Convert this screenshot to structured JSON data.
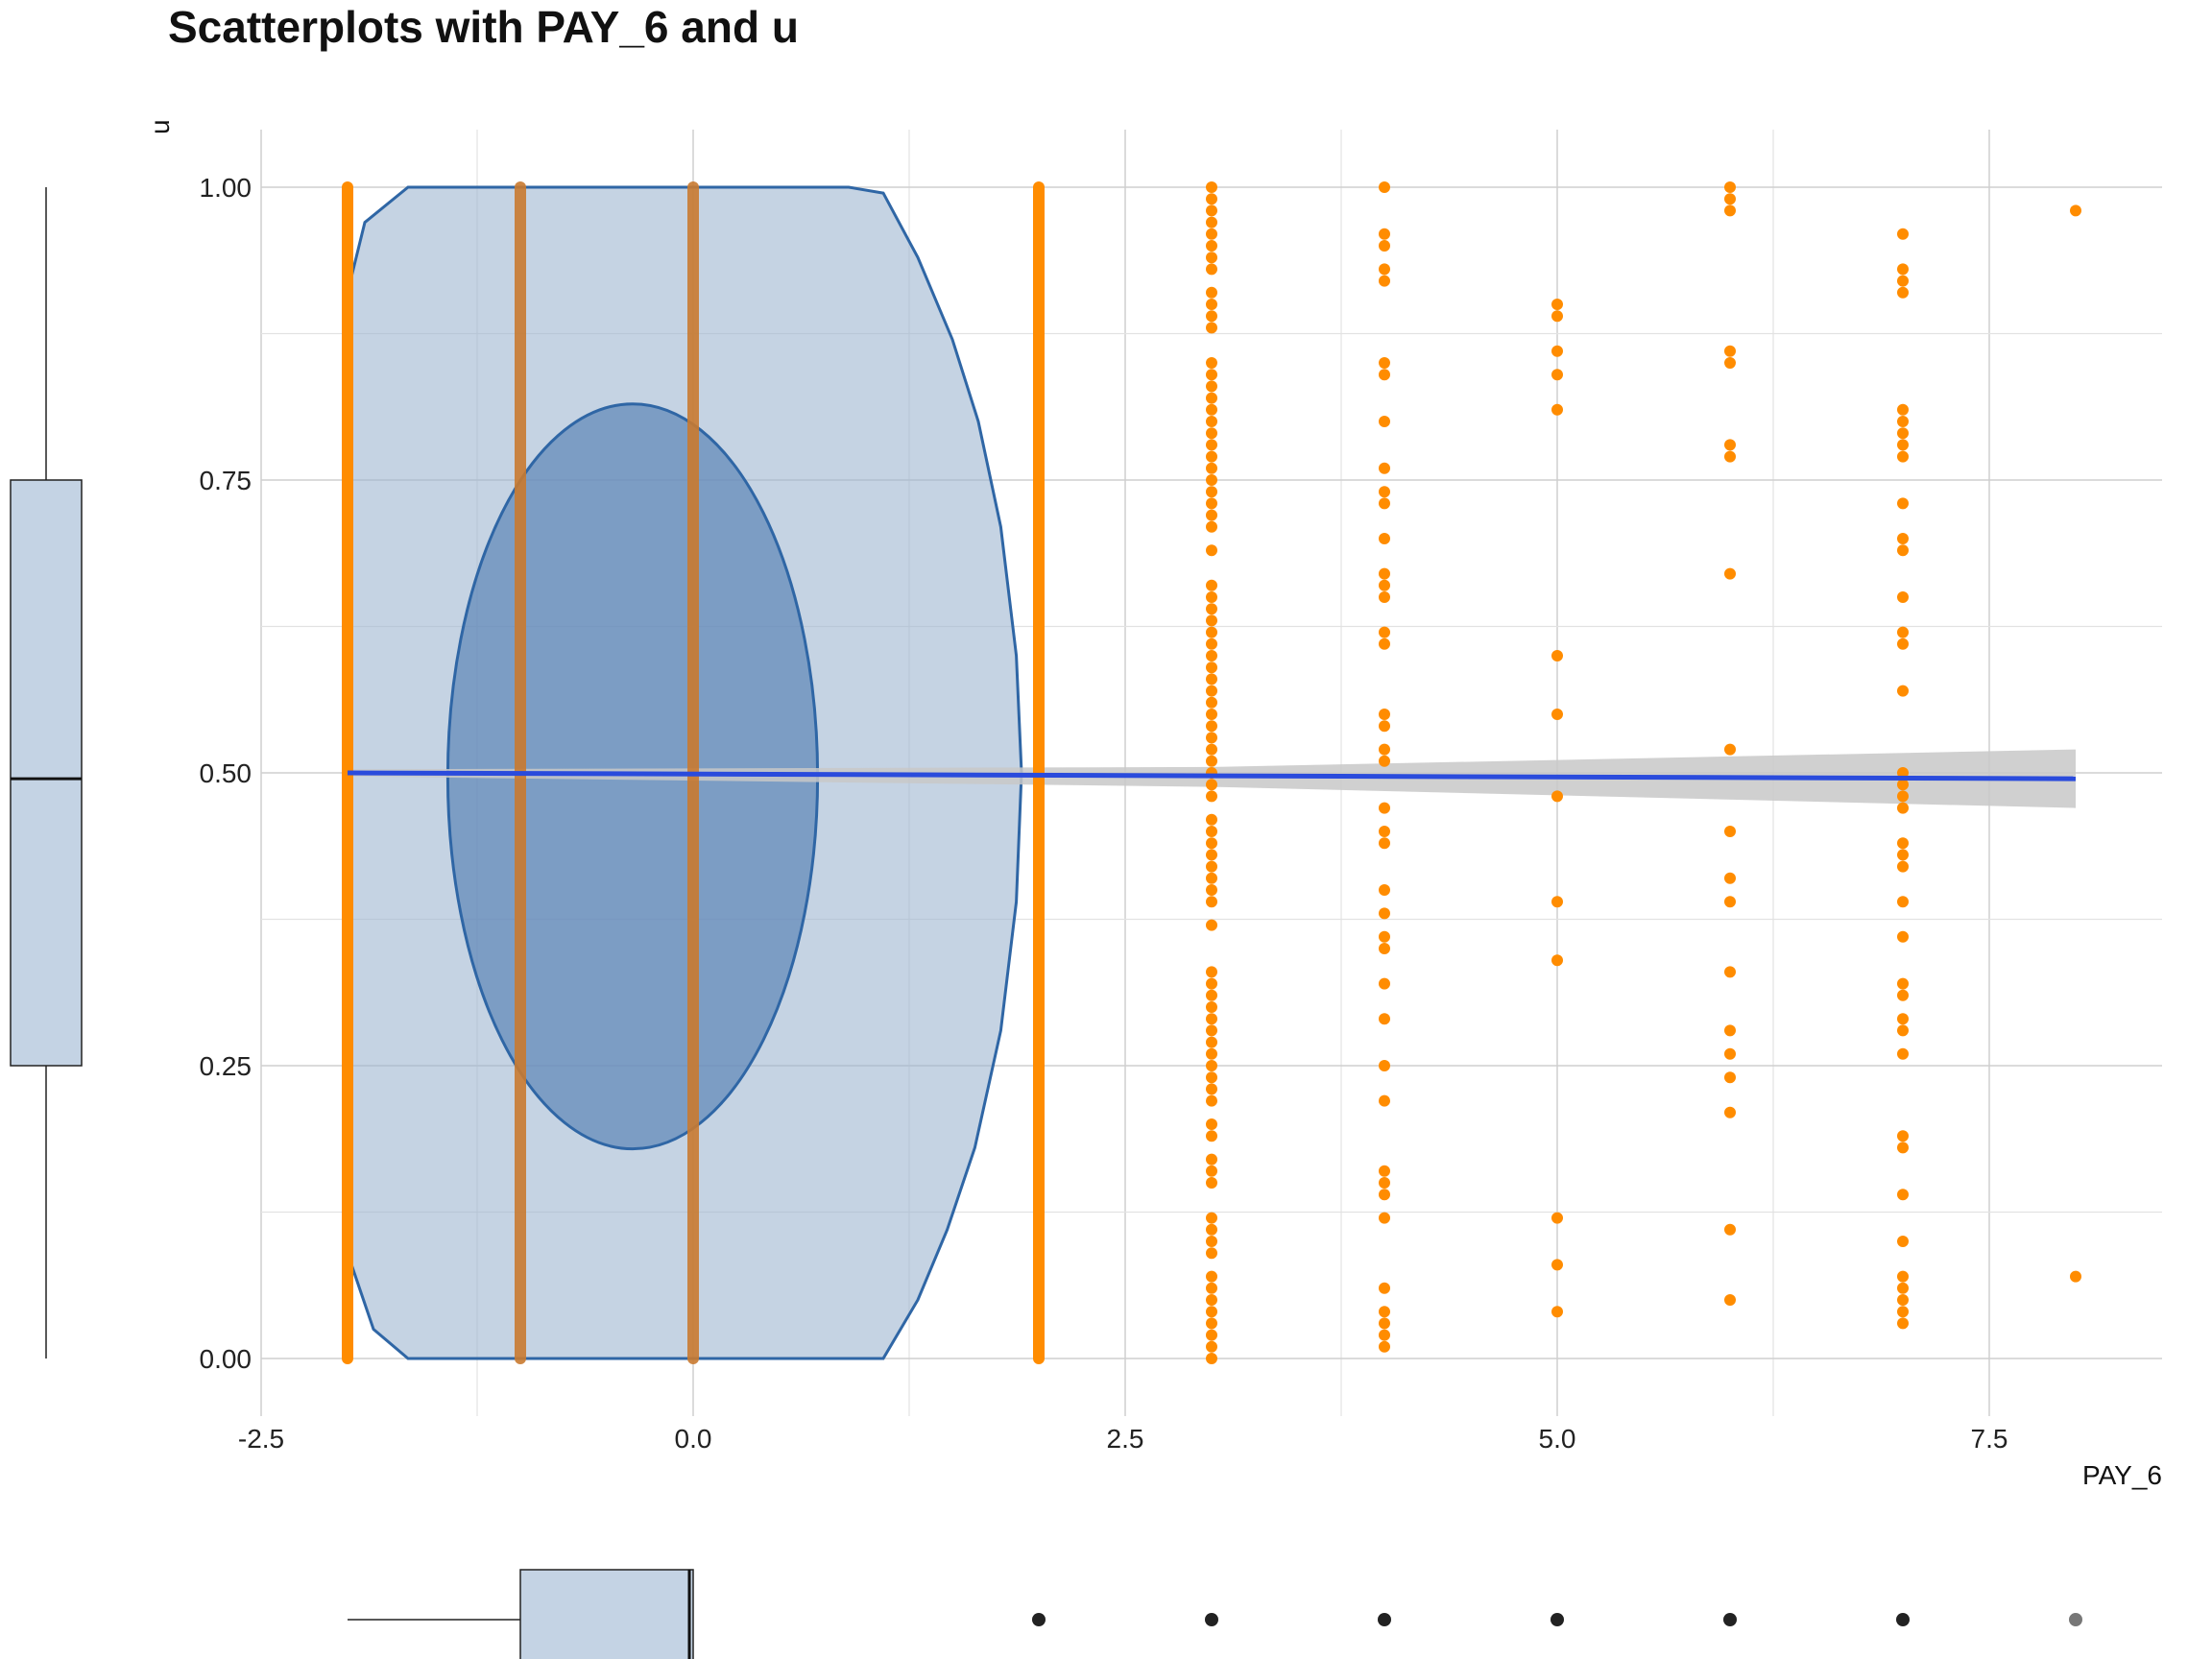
{
  "chart_data": {
    "type": "scatter",
    "title": "Scatterplots with PAY_6 and u",
    "xlabel": "PAY_6",
    "ylabel": "u",
    "xlim": [
      -2.5,
      8.5
    ],
    "ylim": [
      -0.05,
      1.05
    ],
    "x_ticks": [
      -2.5,
      0.0,
      2.5,
      5.0,
      7.5
    ],
    "x_tick_labels": [
      "-2.5",
      "0.0",
      "2.5",
      "5.0",
      "7.5"
    ],
    "y_ticks": [
      0.0,
      0.25,
      0.5,
      0.75,
      1.0
    ],
    "y_tick_labels": [
      "0.00",
      "0.25",
      "0.50",
      "0.75",
      "1.00"
    ],
    "grid": true,
    "colors": {
      "points": "#ff8c00",
      "points_dense": "#c97a30",
      "regression_line": "#2a4bdc",
      "confidence_band": "#c8c8c8",
      "contour_fill": "#9fb5d1",
      "contour_inner_fill": "#5d86b6",
      "contour_stroke": "#2f66a5",
      "boxplot_fill": "#c4d3e4"
    },
    "dense_columns": [
      -2,
      -1,
      0,
      2
    ],
    "points": [
      {
        "x": 3,
        "y": [
          1.0,
          0.99,
          0.98,
          0.97,
          0.96,
          0.95,
          0.94,
          0.93,
          0.91,
          0.9,
          0.89,
          0.88,
          0.85,
          0.84,
          0.83,
          0.82,
          0.81,
          0.8,
          0.79,
          0.78,
          0.77,
          0.76,
          0.75,
          0.74,
          0.73,
          0.72,
          0.71,
          0.69,
          0.66,
          0.65,
          0.64,
          0.63,
          0.62,
          0.61,
          0.6,
          0.59,
          0.58,
          0.57,
          0.56,
          0.55,
          0.54,
          0.53,
          0.52,
          0.51,
          0.5,
          0.49,
          0.48,
          0.46,
          0.45,
          0.44,
          0.43,
          0.42,
          0.41,
          0.4,
          0.39,
          0.37,
          0.33,
          0.32,
          0.31,
          0.3,
          0.29,
          0.28,
          0.27,
          0.26,
          0.25,
          0.24,
          0.23,
          0.22,
          0.2,
          0.19,
          0.17,
          0.16,
          0.15,
          0.12,
          0.11,
          0.1,
          0.09,
          0.07,
          0.06,
          0.05,
          0.04,
          0.03,
          0.02,
          0.01,
          0.0
        ]
      },
      {
        "x": 4,
        "y": [
          1.0,
          0.96,
          0.95,
          0.93,
          0.92,
          0.85,
          0.84,
          0.8,
          0.76,
          0.74,
          0.73,
          0.7,
          0.67,
          0.66,
          0.65,
          0.62,
          0.61,
          0.55,
          0.54,
          0.52,
          0.51,
          0.47,
          0.45,
          0.44,
          0.4,
          0.38,
          0.36,
          0.35,
          0.32,
          0.29,
          0.25,
          0.22,
          0.16,
          0.15,
          0.14,
          0.12,
          0.06,
          0.04,
          0.03,
          0.02,
          0.01
        ]
      },
      {
        "x": 5,
        "y": [
          0.9,
          0.89,
          0.86,
          0.84,
          0.81,
          0.6,
          0.55,
          0.48,
          0.39,
          0.34,
          0.12,
          0.08,
          0.04
        ]
      },
      {
        "x": 6,
        "y": [
          1.0,
          0.99,
          0.98,
          0.86,
          0.85,
          0.78,
          0.77,
          0.67,
          0.52,
          0.45,
          0.41,
          0.39,
          0.33,
          0.28,
          0.26,
          0.24,
          0.21,
          0.11,
          0.05
        ]
      },
      {
        "x": 7,
        "y": [
          0.96,
          0.93,
          0.92,
          0.91,
          0.81,
          0.8,
          0.79,
          0.78,
          0.77,
          0.73,
          0.7,
          0.69,
          0.65,
          0.62,
          0.61,
          0.57,
          0.5,
          0.49,
          0.48,
          0.47,
          0.44,
          0.43,
          0.42,
          0.39,
          0.36,
          0.32,
          0.31,
          0.29,
          0.28,
          0.26,
          0.19,
          0.18,
          0.14,
          0.1,
          0.07,
          0.06,
          0.05,
          0.04,
          0.03
        ]
      },
      {
        "x": 8,
        "y": [
          0.98,
          0.07
        ]
      }
    ],
    "regression": {
      "x": [
        -2,
        8
      ],
      "y": [
        0.5,
        0.495
      ],
      "ci_low_end": 0.47,
      "ci_high_end": 0.52
    },
    "contour_outer": [
      [
        -2.0,
        0.91
      ],
      [
        -1.9,
        0.97
      ],
      [
        -1.65,
        1.0
      ],
      [
        0.9,
        1.0
      ],
      [
        1.1,
        0.995
      ],
      [
        1.3,
        0.94
      ],
      [
        1.5,
        0.87
      ],
      [
        1.65,
        0.8
      ],
      [
        1.78,
        0.71
      ],
      [
        1.87,
        0.6
      ],
      [
        1.9,
        0.5
      ],
      [
        1.87,
        0.39
      ],
      [
        1.78,
        0.28
      ],
      [
        1.63,
        0.18
      ],
      [
        1.47,
        0.11
      ],
      [
        1.3,
        0.05
      ],
      [
        1.1,
        0.0
      ],
      [
        -1.65,
        0.0
      ],
      [
        -1.85,
        0.025
      ],
      [
        -2.0,
        0.09
      ]
    ],
    "contour_inner": {
      "center": [
        -0.35,
        0.497
      ],
      "rx": 1.07,
      "ry": 0.318
    },
    "marginal_boxplot_y": {
      "min": 0.0,
      "q1": 0.25,
      "median": 0.495,
      "q3": 0.75,
      "max": 1.0
    },
    "marginal_boxplot_x": {
      "min": -2.0,
      "q1": -1.0,
      "median": -0.05,
      "q3": 0.0,
      "max": 0.0,
      "outliers": [
        2,
        3,
        4,
        5,
        6,
        7,
        8
      ]
    }
  }
}
